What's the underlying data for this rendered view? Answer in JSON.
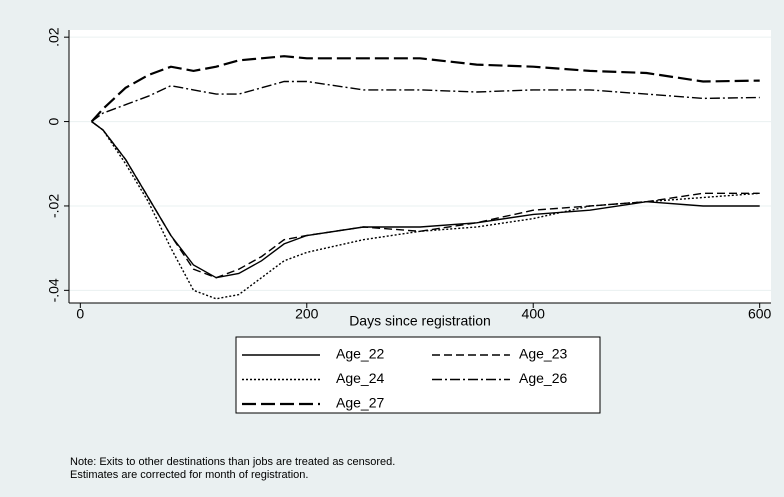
{
  "chart_data": {
    "type": "line",
    "x_label": "Days since registration",
    "x": [
      10,
      20,
      40,
      60,
      80,
      100,
      120,
      140,
      160,
      180,
      200,
      250,
      300,
      350,
      400,
      450,
      500,
      550,
      600
    ],
    "series": [
      {
        "name": "Age_22",
        "color": "#000000",
        "style": "solid",
        "values": [
          0,
          -0.002,
          -0.009,
          -0.018,
          -0.027,
          -0.034,
          -0.037,
          -0.036,
          -0.033,
          -0.029,
          -0.027,
          -0.025,
          -0.025,
          -0.024,
          -0.022,
          -0.021,
          -0.019,
          -0.02,
          -0.02
        ]
      },
      {
        "name": "Age_23",
        "color": "#000000",
        "style": "dash",
        "values": [
          0,
          -0.002,
          -0.009,
          -0.018,
          -0.027,
          -0.035,
          -0.037,
          -0.035,
          -0.032,
          -0.028,
          -0.027,
          -0.025,
          -0.026,
          -0.024,
          -0.021,
          -0.02,
          -0.019,
          -0.017,
          -0.017
        ]
      },
      {
        "name": "Age_24",
        "color": "#000000",
        "style": "dot",
        "values": [
          0,
          -0.002,
          -0.01,
          -0.019,
          -0.03,
          -0.04,
          -0.042,
          -0.041,
          -0.037,
          -0.033,
          -0.031,
          -0.028,
          -0.026,
          -0.025,
          -0.023,
          -0.02,
          -0.019,
          -0.018,
          -0.017
        ]
      },
      {
        "name": "Age_26",
        "color": "#000000",
        "style": "dashdot",
        "values": [
          0,
          0.002,
          0.004,
          0.006,
          0.0085,
          0.0075,
          0.0065,
          0.0065,
          0.008,
          0.0095,
          0.0095,
          0.0075,
          0.0075,
          0.007,
          0.0075,
          0.0075,
          0.0065,
          0.0055,
          0.0057
        ]
      },
      {
        "name": "Age_27",
        "color": "#000000",
        "style": "longdash",
        "values": [
          0,
          0.003,
          0.008,
          0.011,
          0.013,
          0.012,
          0.013,
          0.0145,
          0.015,
          0.0155,
          0.015,
          0.015,
          0.015,
          0.0135,
          0.013,
          0.012,
          0.0115,
          0.0095,
          0.0097
        ]
      }
    ],
    "xlim": [
      -10,
      610
    ],
    "xticks": [
      0,
      200,
      400,
      600
    ],
    "ylim": [
      -0.043,
      0.0217
    ],
    "yticks": [
      {
        "value": -0.04,
        "label": "-.04"
      },
      {
        "value": -0.02,
        "label": "-.02"
      },
      0,
      {
        "value": 0.02,
        "label": ".02"
      }
    ],
    "grid": true,
    "notes": [
      "Note: Exits to other destinations than jobs are treated as censored.",
      "Estimates are corrected for month of registration."
    ]
  }
}
